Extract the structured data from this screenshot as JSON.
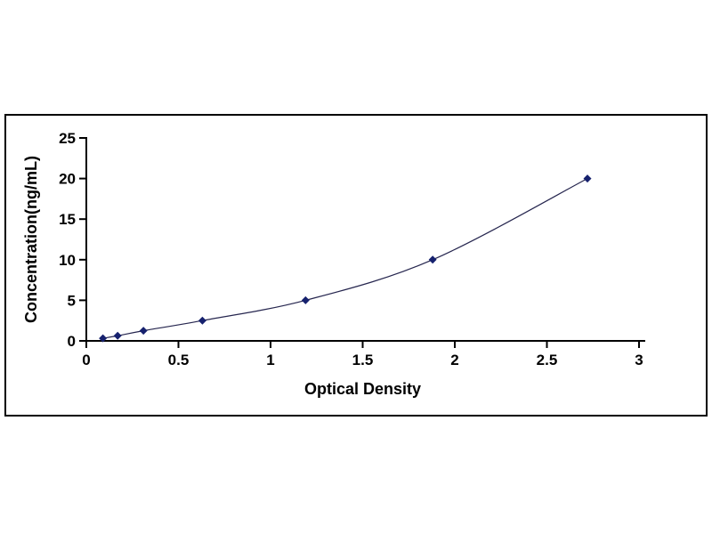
{
  "chart_data": {
    "type": "line",
    "title": "",
    "xlabel": "Optical Density",
    "ylabel": "Concentration(ng/mL)",
    "x": [
      0.09,
      0.17,
      0.31,
      0.63,
      1.19,
      1.88,
      2.72
    ],
    "y": [
      0.31,
      0.63,
      1.25,
      2.5,
      5,
      10,
      20
    ],
    "xlim": [
      0,
      3
    ],
    "ylim": [
      0,
      25
    ],
    "x_ticks": [
      0,
      0.5,
      1,
      1.5,
      2,
      2.5,
      3
    ],
    "x_tick_labels": [
      "0",
      "0.5",
      "1",
      "1.5",
      "2",
      "2.5",
      "3"
    ],
    "y_ticks": [
      0,
      5,
      10,
      15,
      20,
      25
    ],
    "y_tick_labels": [
      "0",
      "5",
      "10",
      "15",
      "20",
      "25"
    ],
    "grid": false,
    "legend": "none",
    "marker": "diamond",
    "colors": {
      "marker": "#16216e",
      "line": "#26264f",
      "axis": "#000000",
      "text": "#000000",
      "frame_border": "#000000",
      "background": "#ffffff"
    }
  }
}
